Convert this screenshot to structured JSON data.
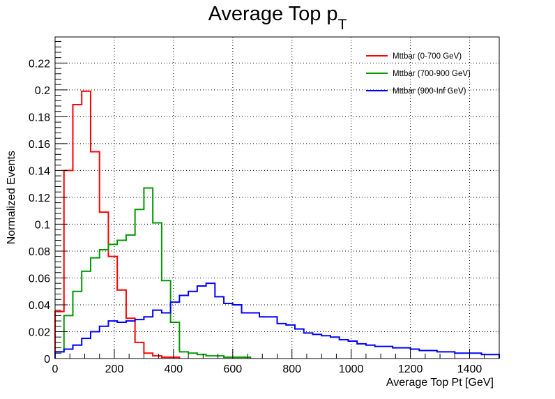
{
  "chart_data": {
    "type": "line",
    "subtype": "step-histogram",
    "title": "Average Top p",
    "title_subscript": "T",
    "xlabel": "Average Top Pt [GeV]",
    "ylabel": "Normalized Events",
    "xlim": [
      0,
      1500
    ],
    "ylim": [
      0,
      0.2394
    ],
    "grid": true,
    "legend_position": "top-right",
    "x_ticks": [
      0,
      200,
      400,
      600,
      800,
      1000,
      1200,
      1400
    ],
    "x_tick_labels": [
      "0",
      "200",
      "400",
      "600",
      "800",
      "1000",
      "1200",
      "1400"
    ],
    "y_ticks": [
      0,
      0.02,
      0.04,
      0.06,
      0.08,
      0.1,
      0.12,
      0.14,
      0.16,
      0.18,
      0.2,
      0.22
    ],
    "y_tick_labels": [
      "0",
      "0.02",
      "0.04",
      "0.06",
      "0.08",
      "0.1",
      "0.12",
      "0.14",
      "0.16",
      "0.18",
      "0.2",
      "0.22"
    ],
    "bin_width": 30,
    "series": [
      {
        "name": "Mttbar (0-700 GeV)",
        "color": "#ff0000",
        "values": [
          0.035,
          0.14,
          0.189,
          0.199,
          0.154,
          0.109,
          0.076,
          0.051,
          0.03,
          0.012,
          0.004,
          0.002,
          0.001,
          0.001
        ]
      },
      {
        "name": "Mttbar (700-900 GeV)",
        "color": "#009900",
        "values": [
          0.005,
          0.032,
          0.05,
          0.065,
          0.075,
          0.081,
          0.085,
          0.088,
          0.092,
          0.111,
          0.127,
          0.101,
          0.058,
          0.027,
          0.005,
          0.004,
          0.003,
          0.002,
          0.002,
          0.001,
          0.001,
          0.001
        ]
      },
      {
        "name": "Mttbar (900-Inf GeV)",
        "color": "#0000ff",
        "values": [
          0.005,
          0.007,
          0.01,
          0.015,
          0.02,
          0.024,
          0.028,
          0.027,
          0.028,
          0.029,
          0.031,
          0.036,
          0.034,
          0.042,
          0.047,
          0.05,
          0.054,
          0.056,
          0.046,
          0.041,
          0.04,
          0.034,
          0.034,
          0.031,
          0.031,
          0.026,
          0.025,
          0.022,
          0.019,
          0.018,
          0.017,
          0.016,
          0.014,
          0.013,
          0.011,
          0.01,
          0.009,
          0.009,
          0.008,
          0.008,
          0.007,
          0.006,
          0.006,
          0.005,
          0.005,
          0.004,
          0.004,
          0.004,
          0.003,
          0.003
        ]
      }
    ]
  }
}
